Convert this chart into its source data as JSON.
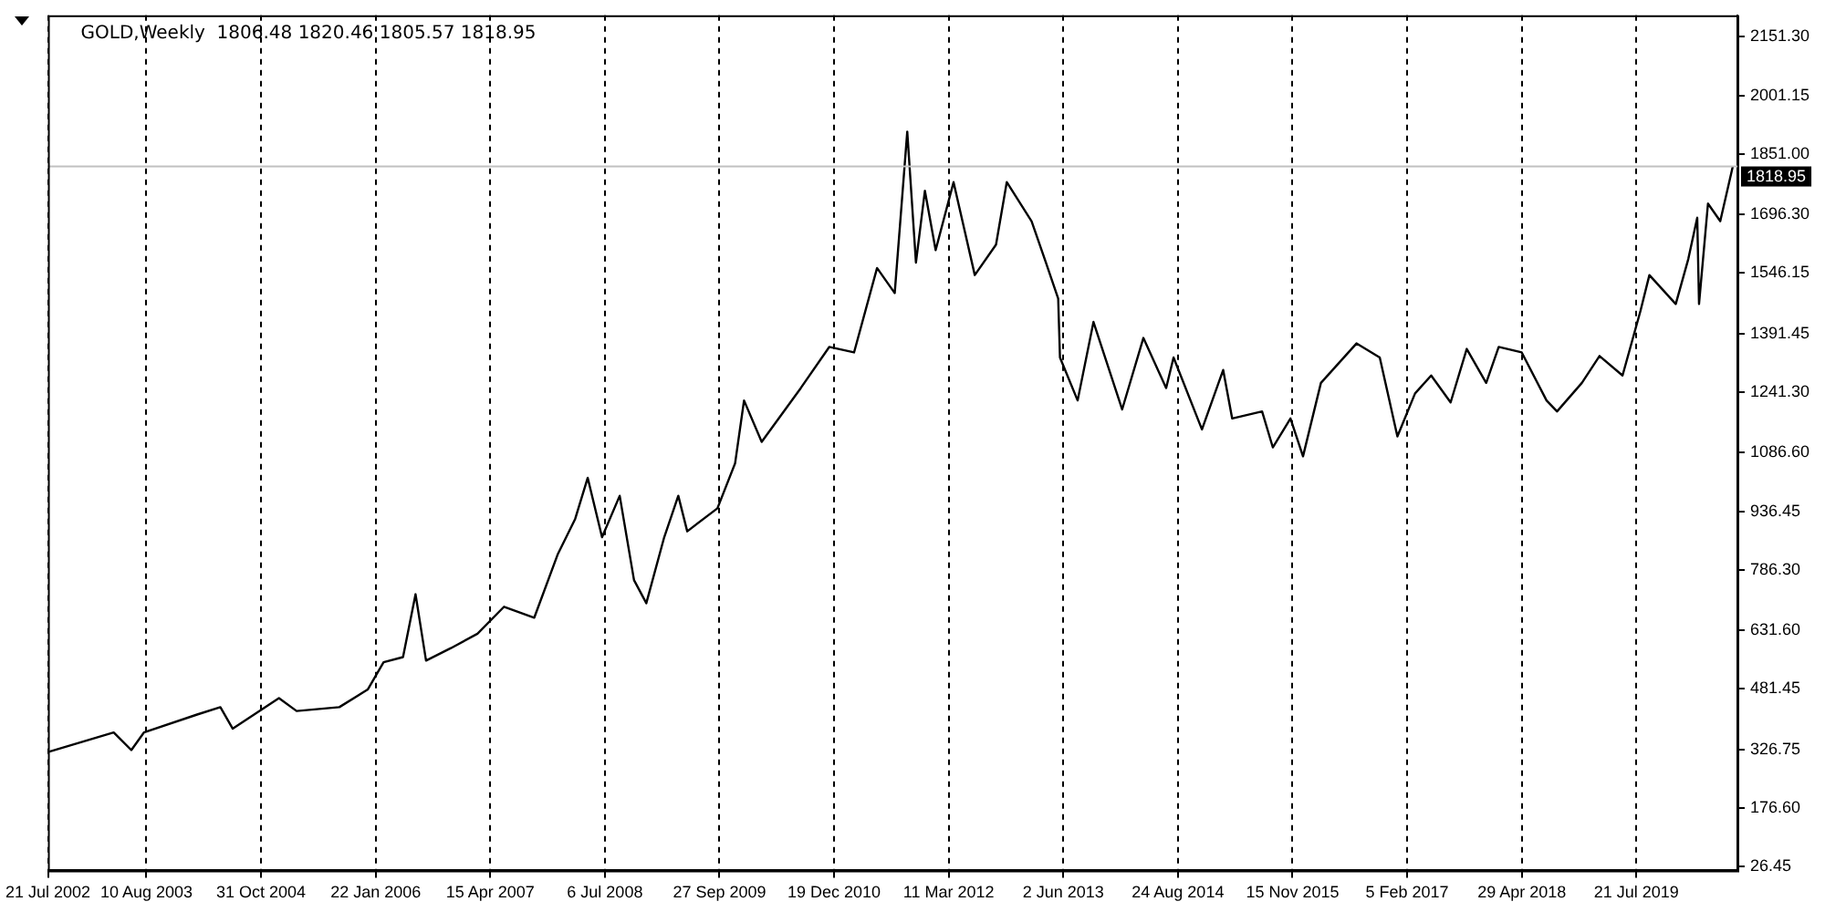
{
  "chart_data": {
    "type": "line",
    "title": "GOLD,Weekly  1806.48 1820.46 1805.57 1818.95",
    "x": [
      "2002-07-21",
      "2003-04-04",
      "2003-06-12",
      "2003-07-31",
      "2004-02-24",
      "2004-05-25",
      "2004-07-12",
      "2005-01-09",
      "2005-03-19",
      "2005-09-02",
      "2005-12-22",
      "2006-02-22",
      "2006-05-09",
      "2006-06-27",
      "2006-08-07",
      "2006-11-12",
      "2007-02-24",
      "2007-06-08",
      "2007-10-04",
      "2008-01-03",
      "2008-03-12",
      "2008-04-30",
      "2008-06-25",
      "2008-09-02",
      "2008-10-28",
      "2008-12-15",
      "2009-02-23",
      "2009-04-19",
      "2009-05-24",
      "2009-09-19",
      "2009-11-27",
      "2010-01-01",
      "2010-03-11",
      "2010-08-11",
      "2010-11-30",
      "2011-03-07",
      "2011-06-05",
      "2011-08-13",
      "2011-10-01",
      "2011-11-04",
      "2011-12-09",
      "2012-01-20",
      "2012-03-30",
      "2012-06-21",
      "2012-09-12",
      "2012-10-24",
      "2013-01-29",
      "2013-03-26",
      "2013-05-13",
      "2013-05-20",
      "2013-07-28",
      "2013-09-28",
      "2014-01-18",
      "2014-04-11",
      "2014-07-09",
      "2014-08-07",
      "2014-11-26",
      "2015-02-17",
      "2015-03-24",
      "2015-07-19",
      "2015-08-30",
      "2015-11-07",
      "2015-12-26",
      "2016-03-05",
      "2016-07-22",
      "2016-10-21",
      "2016-12-29",
      "2017-03-08",
      "2017-05-10",
      "2017-07-25",
      "2017-09-26",
      "2017-12-11",
      "2018-01-29",
      "2018-04-29",
      "2018-08-04",
      "2018-09-14",
      "2018-12-20",
      "2019-02-27",
      "2019-05-28",
      "2019-08-06",
      "2019-09-10",
      "2019-12-22",
      "2020-02-09",
      "2020-03-15",
      "2020-03-22",
      "2020-04-26",
      "2020-06-13",
      "2020-08-01"
    ],
    "series": [
      {
        "color": "#000000",
        "values": [
          320,
          370,
          325,
          370,
          416,
          435,
          380,
          458,
          425,
          435,
          480,
          550,
          563,
          724,
          554,
          586,
          623,
          692,
          664,
          825,
          917,
          1022,
          870,
          976,
          760,
          701,
          870,
          976,
          885,
          944,
          1059,
          1220,
          1114,
          1252,
          1357,
          1343,
          1559,
          1495,
          1908,
          1573,
          1757,
          1605,
          1779,
          1541,
          1619,
          1779,
          1679,
          1573,
          1481,
          1330,
          1220,
          1421,
          1197,
          1380,
          1252,
          1330,
          1146,
          1298,
          1174,
          1192,
          1100,
          1174,
          1077,
          1265,
          1366,
          1330,
          1128,
          1238,
          1284,
          1215,
          1352,
          1265,
          1357,
          1343,
          1220,
          1192,
          1265,
          1334,
          1284,
          1449,
          1541,
          1467,
          1582,
          1688,
          1467,
          1724,
          1679,
          1818.95
        ]
      }
    ],
    "xlim": [
      "2002-07-21",
      "2020-08-19"
    ],
    "xticks": [
      {
        "value": "2002-07-21",
        "label": "21 Jul 2002"
      },
      {
        "value": "2003-08-10",
        "label": "10 Aug 2003"
      },
      {
        "value": "2004-10-31",
        "label": "31 Oct 2004"
      },
      {
        "value": "2006-01-22",
        "label": "22 Jan 2006"
      },
      {
        "value": "2007-04-15",
        "label": "15 Apr 2007"
      },
      {
        "value": "2008-07-06",
        "label": "6 Jul 2008"
      },
      {
        "value": "2009-09-27",
        "label": "27 Sep 2009"
      },
      {
        "value": "2010-12-19",
        "label": "19 Dec 2010"
      },
      {
        "value": "2012-03-11",
        "label": "11 Mar 2012"
      },
      {
        "value": "2013-06-02",
        "label": "2 Jun 2013"
      },
      {
        "value": "2014-08-24",
        "label": "24 Aug 2014"
      },
      {
        "value": "2015-11-15",
        "label": "15 Nov 2015"
      },
      {
        "value": "2017-02-05",
        "label": "5 Feb 2017"
      },
      {
        "value": "2018-04-29",
        "label": "29 Apr 2018"
      },
      {
        "value": "2019-07-21",
        "label": "21 Jul 2019"
      }
    ],
    "ylim": [
      17,
      2206
    ],
    "yticks": [
      {
        "value": 26.45,
        "label": "26.45"
      },
      {
        "value": 176.6,
        "label": "176.60"
      },
      {
        "value": 326.75,
        "label": "326.75"
      },
      {
        "value": 481.45,
        "label": "481.45"
      },
      {
        "value": 631.6,
        "label": "631.60"
      },
      {
        "value": 786.3,
        "label": "786.30"
      },
      {
        "value": 936.45,
        "label": "936.45"
      },
      {
        "value": 1086.6,
        "label": "1086.60"
      },
      {
        "value": 1241.3,
        "label": "1241.30"
      },
      {
        "value": 1391.45,
        "label": "1391.45"
      },
      {
        "value": 1546.15,
        "label": "1546.15"
      },
      {
        "value": 1696.3,
        "label": "1696.30"
      },
      {
        "value": 1851,
        "label": "1851.00"
      },
      {
        "value": 2001.15,
        "label": "2001.15"
      },
      {
        "value": 2151.3,
        "label": "2151.30"
      }
    ],
    "ref_lines": [
      {
        "axis": "y",
        "value": 1818.95,
        "label": "1818.95",
        "color": "#c0c0c0"
      }
    ],
    "grid": "x",
    "legend": false
  }
}
